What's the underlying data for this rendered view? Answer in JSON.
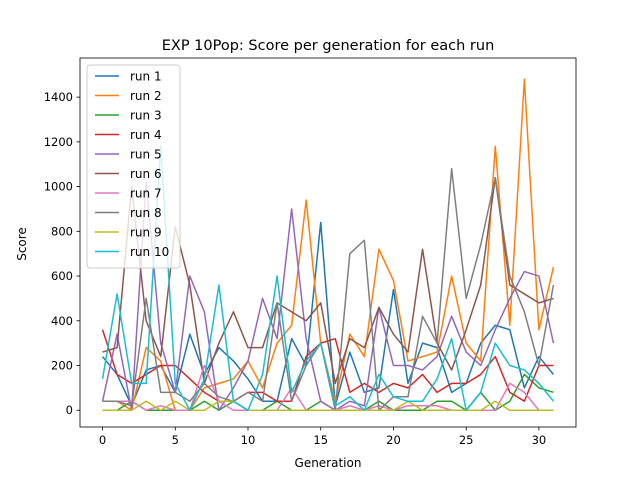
{
  "chart_data": {
    "type": "line",
    "title": "EXP 10Pop: Score per generation for each run",
    "xlabel": "Generation",
    "ylabel": "Score",
    "xlim": [
      -1.55,
      32.55
    ],
    "ylim": [
      -75,
      1575
    ],
    "x_ticks": [
      0,
      5,
      10,
      15,
      20,
      25,
      30
    ],
    "y_ticks": [
      0,
      200,
      400,
      600,
      800,
      1000,
      1200,
      1400
    ],
    "grid": false,
    "legend_position": "top-left",
    "x": [
      0,
      1,
      2,
      3,
      4,
      5,
      6,
      7,
      8,
      9,
      10,
      11,
      12,
      13,
      14,
      15,
      16,
      17,
      18,
      19,
      20,
      21,
      22,
      23,
      24,
      25,
      26,
      27,
      28,
      29,
      30,
      31
    ],
    "series": [
      {
        "name": "run 1",
        "color": "#1f77b4",
        "values": [
          240,
          160,
          20,
          180,
          200,
          80,
          340,
          160,
          280,
          220,
          140,
          40,
          40,
          320,
          200,
          840,
          20,
          260,
          80,
          100,
          540,
          120,
          300,
          280,
          80,
          120,
          300,
          380,
          360,
          100,
          240,
          160
        ]
      },
      {
        "name": "run 2",
        "color": "#ff7f0e",
        "values": [
          40,
          40,
          0,
          280,
          220,
          0,
          0,
          100,
          120,
          140,
          220,
          100,
          300,
          380,
          940,
          300,
          40,
          340,
          240,
          720,
          580,
          220,
          240,
          260,
          600,
          300,
          220,
          1180,
          380,
          1480,
          360,
          640
        ]
      },
      {
        "name": "run 3",
        "color": "#2ca02c",
        "values": [
          0,
          0,
          40,
          0,
          0,
          0,
          0,
          40,
          0,
          40,
          0,
          0,
          40,
          0,
          0,
          40,
          0,
          0,
          0,
          40,
          0,
          0,
          0,
          40,
          40,
          0,
          80,
          0,
          40,
          160,
          100,
          80
        ]
      },
      {
        "name": "run 4",
        "color": "#d62728",
        "values": [
          360,
          160,
          120,
          160,
          200,
          200,
          140,
          80,
          40,
          40,
          80,
          80,
          40,
          40,
          240,
          300,
          320,
          80,
          120,
          80,
          120,
          100,
          160,
          80,
          120,
          120,
          160,
          240,
          80,
          40,
          200,
          200
        ]
      },
      {
        "name": "run 5",
        "color": "#9467bd",
        "values": [
          40,
          340,
          0,
          1020,
          300,
          80,
          600,
          440,
          0,
          100,
          220,
          500,
          320,
          900,
          320,
          40,
          0,
          40,
          20,
          460,
          200,
          200,
          180,
          240,
          420,
          260,
          200,
          360,
          500,
          620,
          600,
          300
        ]
      },
      {
        "name": "run 6",
        "color": "#8c564b",
        "values": [
          260,
          280,
          1000,
          400,
          240,
          820,
          560,
          120,
          300,
          440,
          280,
          280,
          480,
          440,
          400,
          480,
          120,
          320,
          280,
          460,
          340,
          260,
          720,
          300,
          180,
          360,
          560,
          1040,
          560,
          520,
          480,
          500
        ]
      },
      {
        "name": "run 7",
        "color": "#e377c2",
        "values": [
          40,
          40,
          40,
          0,
          20,
          0,
          0,
          200,
          40,
          0,
          0,
          0,
          0,
          100,
          0,
          0,
          0,
          20,
          0,
          20,
          0,
          20,
          20,
          20,
          0,
          0,
          0,
          0,
          120,
          80,
          0,
          0
        ]
      },
      {
        "name": "run 8",
        "color": "#7f7f7f",
        "values": [
          40,
          40,
          20,
          500,
          80,
          80,
          40,
          120,
          60,
          40,
          80,
          40,
          480,
          40,
          200,
          300,
          0,
          700,
          760,
          0,
          60,
          60,
          420,
          300,
          1080,
          500,
          740,
          1040,
          600,
          440,
          200,
          560
        ]
      },
      {
        "name": "run 9",
        "color": "#bcbd22",
        "values": [
          0,
          0,
          0,
          40,
          0,
          40,
          0,
          0,
          40,
          40,
          0,
          0,
          0,
          0,
          0,
          0,
          0,
          0,
          0,
          0,
          0,
          40,
          0,
          0,
          0,
          0,
          0,
          40,
          0,
          0,
          0,
          0
        ]
      },
      {
        "name": "run 10",
        "color": "#17becf",
        "values": [
          140,
          520,
          120,
          120,
          1180,
          120,
          0,
          140,
          560,
          40,
          0,
          160,
          600,
          80,
          220,
          300,
          20,
          60,
          0,
          160,
          60,
          40,
          40,
          140,
          320,
          0,
          80,
          300,
          200,
          180,
          120,
          40
        ]
      }
    ]
  }
}
